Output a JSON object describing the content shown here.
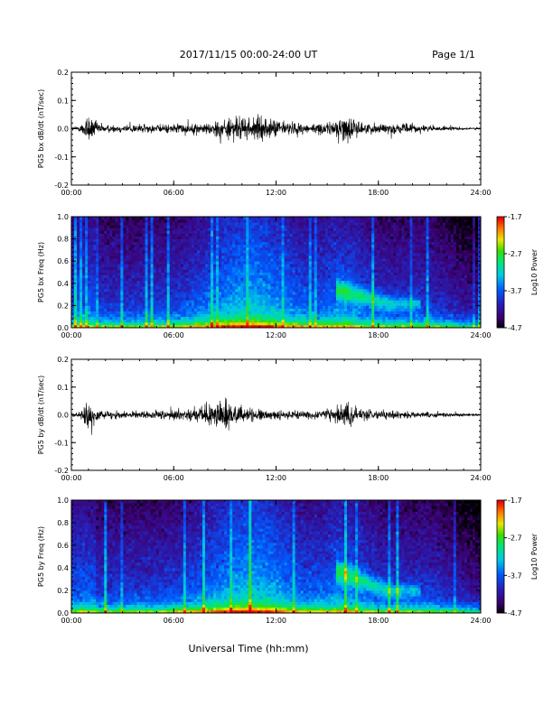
{
  "header": {
    "title": "2017/11/15  00:00-24:00 UT",
    "page": "Page 1/1"
  },
  "xaxis": {
    "label": "Universal Time (hh:mm)",
    "ticks": [
      "00:00",
      "06:00",
      "12:00",
      "18:00",
      "24:00"
    ],
    "range_hours": [
      0,
      24
    ]
  },
  "chart_data": [
    {
      "type": "line",
      "ylabel": "PG5 bx dB/dt (nT/sec)",
      "ylim": [
        -0.2,
        0.2
      ],
      "yticks": [
        "0.2",
        "0.1",
        "0.0",
        "-0.1",
        "-0.2"
      ],
      "color": "#000000",
      "envelope": {
        "x_hours": [
          0,
          0.5,
          0.8,
          1.0,
          1.5,
          2,
          3,
          4,
          5,
          6,
          7,
          8,
          8.5,
          9,
          9.5,
          10,
          10.5,
          11,
          11.5,
          12,
          12.5,
          13,
          14,
          15,
          15.5,
          16,
          16.5,
          17,
          17.5,
          18,
          19,
          20,
          21,
          22,
          23,
          24
        ],
        "amplitude": [
          0.02,
          0.03,
          0.12,
          0.16,
          0.07,
          0.04,
          0.04,
          0.05,
          0.04,
          0.05,
          0.05,
          0.06,
          0.09,
          0.1,
          0.13,
          0.12,
          0.11,
          0.13,
          0.09,
          0.1,
          0.08,
          0.07,
          0.05,
          0.06,
          0.1,
          0.14,
          0.12,
          0.06,
          0.05,
          0.06,
          0.05,
          0.05,
          0.03,
          0.02,
          0.015,
          0.01
        ]
      }
    },
    {
      "type": "heatmap",
      "ylabel": "PG5 bx Freq (Hz)",
      "ylim": [
        0.0,
        1.0
      ],
      "yticks": [
        "1.0",
        "0.8",
        "0.6",
        "0.4",
        "0.2",
        "0.0"
      ],
      "colorbar": {
        "label": "Log10 Power",
        "ticks": [
          "-1.7",
          "-2.7",
          "-3.7",
          "-4.7"
        ],
        "range": [
          -4.7,
          -1.7
        ]
      },
      "pc1_band": {
        "start_hours": 15.5,
        "end_hours": 20.5,
        "freq_start_hz": 0.35,
        "freq_end_hz": 0.22
      }
    },
    {
      "type": "line",
      "ylabel": "PG5 by dB/dt (nT/sec)",
      "ylim": [
        -0.2,
        0.2
      ],
      "yticks": [
        "0.2",
        "0.1",
        "0.0",
        "-0.1",
        "-0.2"
      ],
      "color": "#000000",
      "envelope": {
        "x_hours": [
          0,
          0.5,
          0.8,
          1.0,
          1.5,
          2,
          3,
          4,
          5,
          6,
          7,
          8,
          8.5,
          9,
          9.5,
          10,
          10.5,
          11,
          11.5,
          12,
          12.5,
          13,
          14,
          15,
          15.5,
          16,
          16.5,
          17,
          17.5,
          18,
          19,
          20,
          21,
          22,
          23,
          24
        ],
        "amplitude": [
          0.02,
          0.03,
          0.14,
          0.19,
          0.06,
          0.04,
          0.04,
          0.04,
          0.04,
          0.05,
          0.06,
          0.1,
          0.14,
          0.2,
          0.12,
          0.09,
          0.07,
          0.07,
          0.05,
          0.05,
          0.04,
          0.04,
          0.04,
          0.05,
          0.09,
          0.12,
          0.1,
          0.06,
          0.05,
          0.05,
          0.04,
          0.04,
          0.03,
          0.02,
          0.015,
          0.01
        ]
      }
    },
    {
      "type": "heatmap",
      "ylabel": "PG5 by Freq (Hz)",
      "ylim": [
        0.0,
        1.0
      ],
      "yticks": [
        "1.0",
        "0.8",
        "0.6",
        "0.4",
        "0.2",
        "0.0"
      ],
      "colorbar": {
        "label": "Log10 Power",
        "ticks": [
          "-1.7",
          "-2.7",
          "-3.7",
          "-4.7"
        ],
        "range": [
          -4.7,
          -1.7
        ]
      },
      "pc1_band": {
        "start_hours": 15.5,
        "end_hours": 20.5,
        "freq_start_hz": 0.38,
        "freq_end_hz": 0.2
      }
    }
  ]
}
